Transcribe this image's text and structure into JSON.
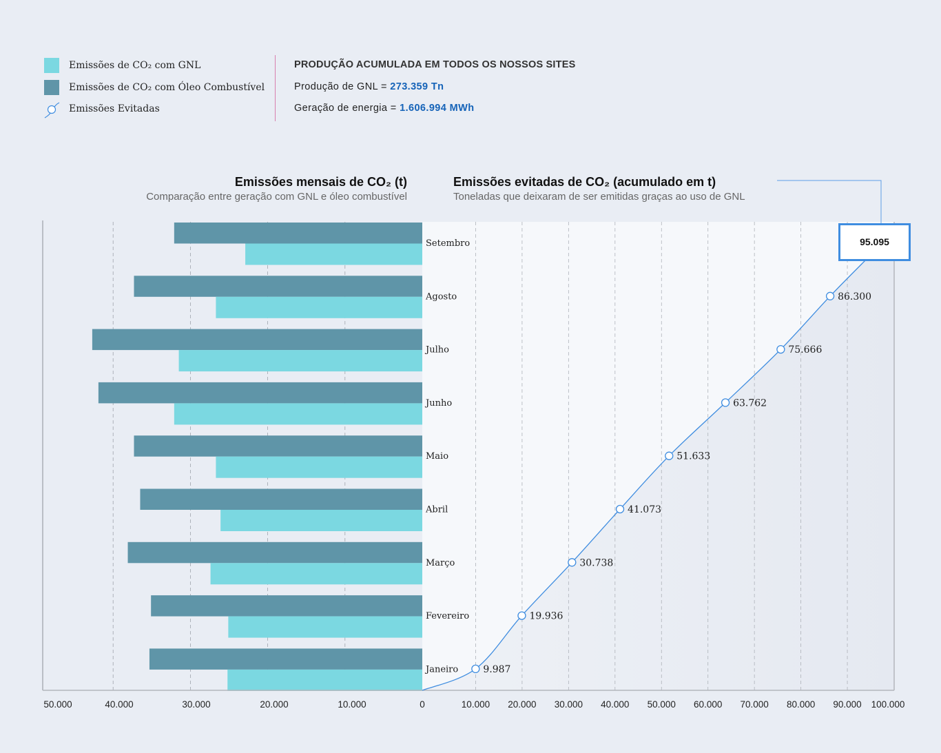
{
  "legend": {
    "items": [
      {
        "label": "Emissões de CO₂ com GNL",
        "color": "#7bd8e1",
        "icon": "swatch"
      },
      {
        "label": "Emissões de CO₂ com Óleo Combustível",
        "color": "#5f95a8",
        "icon": "swatch"
      },
      {
        "label": "Emissões Evitadas",
        "color": "#3f8de0",
        "icon": "line-marker-icon"
      }
    ]
  },
  "stats": {
    "heading": "PRODUÇÃO ACUMULADA EM TODOS OS NOSSOS SITES",
    "rows": [
      {
        "label": "Produção de GNL = ",
        "value": "273.359 Tn"
      },
      {
        "label": "Geração de energia = ",
        "value": "1.606.994 MWh"
      }
    ]
  },
  "colors": {
    "gnl": "#7bd8e1",
    "oleo": "#5f95a8",
    "line": "#3f8de0",
    "accent_value": "#1563b8",
    "divider": "#d77fae"
  },
  "chart_data": [
    {
      "type": "bar",
      "orientation": "horizontal",
      "title": "Emissões mensais de CO₂ (t)",
      "subtitle": "Comparação entre geração com GNL e óleo combustível",
      "categories": [
        "Janeiro",
        "Fevereiro",
        "Março",
        "Abril",
        "Maio",
        "Junho",
        "Julho",
        "Agosto",
        "Setembro"
      ],
      "series": [
        {
          "name": "Emissões de CO₂ com Óleo Combustível",
          "values": [
            35300,
            35100,
            38100,
            36500,
            37300,
            41900,
            42700,
            37300,
            32100
          ]
        },
        {
          "name": "Emissões de CO₂ com GNL",
          "values": [
            25200,
            25100,
            27400,
            26100,
            26700,
            32100,
            31500,
            26700,
            22900
          ]
        }
      ],
      "xlim": [
        50000,
        0
      ],
      "xticks": [
        "50.000",
        "40.000",
        "30.000",
        "20.000",
        "10.000",
        "0"
      ],
      "grid": true
    },
    {
      "type": "line",
      "title": "Emissões evitadas de CO₂ (acumulado em t)",
      "subtitle": "Toneladas que deixaram de ser emitidas graças ao uso de GNL",
      "categories": [
        "Janeiro",
        "Fevereiro",
        "Março",
        "Abril",
        "Maio",
        "Junho",
        "Julho",
        "Agosto",
        "Setembro"
      ],
      "values": [
        9987,
        19936,
        30738,
        41073,
        51633,
        63762,
        75666,
        86300,
        95095
      ],
      "labels": [
        "9.987",
        "19.936",
        "30.738",
        "41.073",
        "51.633",
        "63.762",
        "75.666",
        "86.300",
        "95.095"
      ],
      "highlight": {
        "label": "95.095"
      },
      "xlim": [
        0,
        100000
      ],
      "xticks": [
        "0",
        "10.000",
        "20.000",
        "30.000",
        "40.000",
        "50.000",
        "60.000",
        "70.000",
        "80.000",
        "90.000",
        "100.000"
      ],
      "grid": true
    }
  ]
}
